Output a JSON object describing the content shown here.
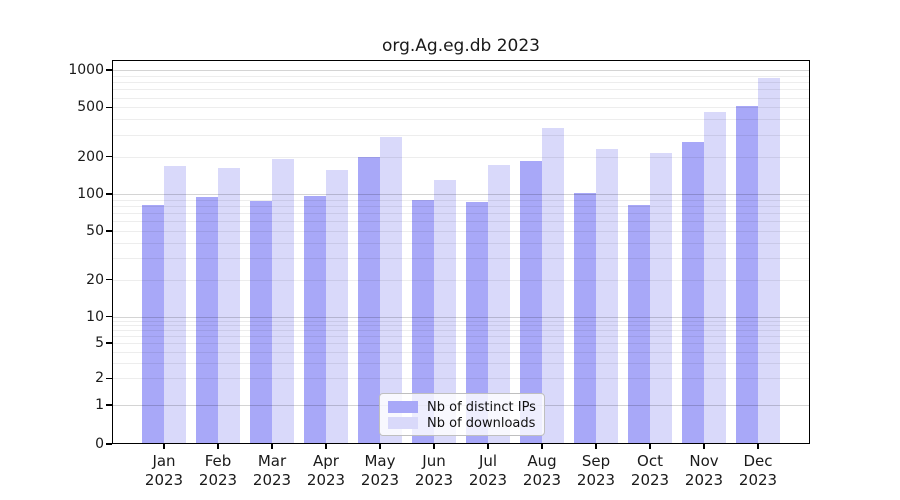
{
  "chart_data": {
    "type": "bar",
    "title": "org.Ag.eg.db 2023",
    "categories": [
      "Jan 2023",
      "Feb 2023",
      "Mar 2023",
      "Apr 2023",
      "May 2023",
      "Jun 2023",
      "Jul 2023",
      "Aug 2023",
      "Sep 2023",
      "Oct 2023",
      "Nov 2023",
      "Dec 2023"
    ],
    "series": [
      {
        "name": "Nb of distinct IPs",
        "color": "#a8a8f8",
        "values": [
          82,
          94,
          88,
          96,
          200,
          90,
          86,
          185,
          102,
          82,
          265,
          515
        ]
      },
      {
        "name": "Nb of downloads",
        "color": "#d9d9fa",
        "values": [
          168,
          162,
          190,
          156,
          290,
          130,
          170,
          340,
          230,
          215,
          455,
          870
        ]
      }
    ],
    "ylabel": "",
    "xlabel": "",
    "yticks": [
      0,
      1,
      2,
      5,
      10,
      20,
      50,
      100,
      200,
      500,
      1000
    ],
    "ylim": [
      0,
      1200
    ],
    "yscale": "log above 1, linear 0-1",
    "grid": true,
    "legend_position": "inside bottom-center"
  }
}
